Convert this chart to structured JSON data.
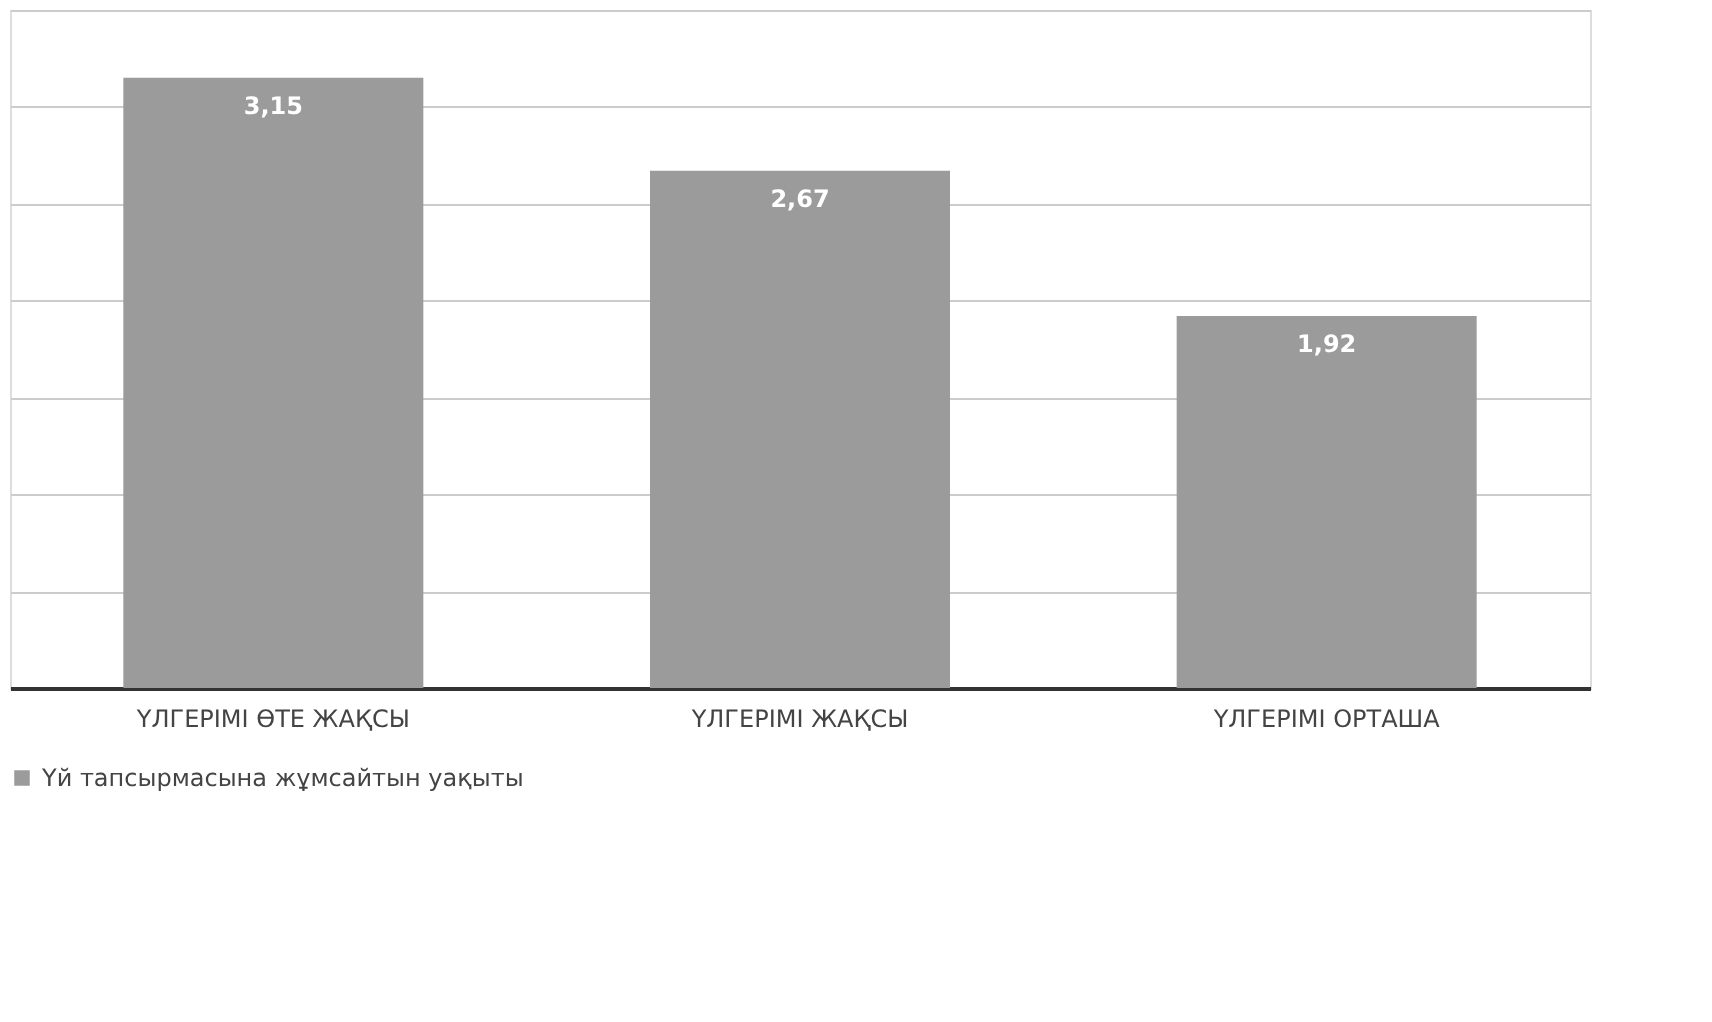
{
  "chart_data": {
    "type": "bar",
    "categories": [
      "ҮЛГЕРІМІ ӨТЕ ЖАҚСЫ",
      "ҮЛГЕРІМІ ЖАҚСЫ",
      "ҮЛГЕРІМІ ОРТАША"
    ],
    "series": [
      {
        "name": "Үй тапсырмасына жұмсайтын уақыты",
        "color": "#9b9b9b",
        "values": [
          3.15,
          2.67,
          1.92
        ],
        "value_labels": [
          "3,15",
          "2,67",
          "1,92"
        ]
      }
    ],
    "ylim": [
      0,
      3.5
    ],
    "yticks": [
      {
        "value": 0,
        "label": null
      },
      {
        "value": 0.5,
        "label": null
      },
      {
        "value": 1,
        "label": null
      },
      {
        "value": 1.5,
        "label": null
      },
      {
        "value": 2,
        "label": null
      },
      {
        "value": 2.5,
        "label": null
      },
      {
        "value": 3,
        "label": null
      },
      {
        "value": 3.5,
        "label": null
      }
    ],
    "tick_labels": "x",
    "grid": "y",
    "legend": "bottom"
  }
}
